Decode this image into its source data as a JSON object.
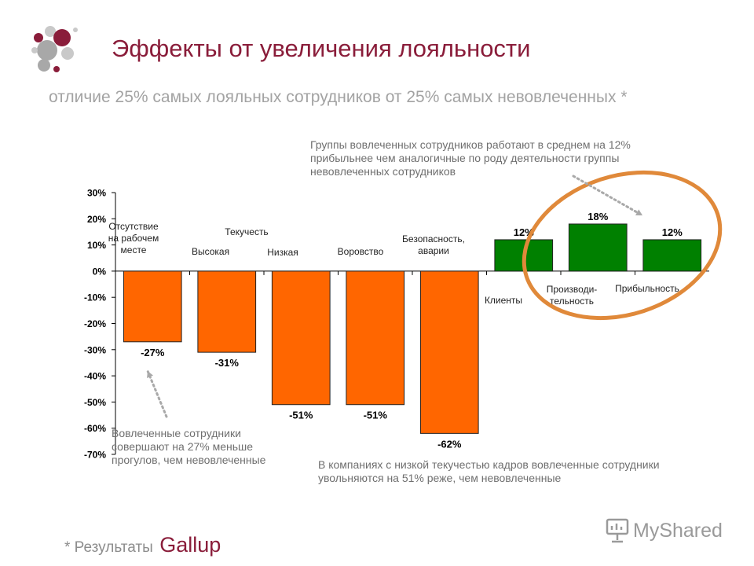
{
  "slide": {
    "title": "Эффекты от увеличения лояльности",
    "subtitle": "отличие 25% самых лояльных сотрудников от 25% самых невовлеченных *",
    "footer_note": "* Результаты",
    "footer_brand": "Gallup",
    "watermark": "MyShared"
  },
  "annotations": {
    "top": "Группы вовлеченных сотрудников работают в среднем на 12% прибыльнее чем аналогичные по роду деятельности группы невовлеченных сотрудников",
    "left": "Вовлеченные сотрудники совершают на 27% меньше прогулов, чем невовлеченные",
    "bottom": "В компаниях с низкой текучестью кадров вовлеченные сотрудники увольняются на 51% реже, чем невовлеченные"
  },
  "chart_data": {
    "type": "bar",
    "categories": [
      "Отсутствие на рабочем месте",
      "Высокая",
      "Низкая",
      "Воровство",
      "Безопасность, аварии",
      "Клиенты",
      "Производи-тельность",
      "Прибыльность"
    ],
    "category_lines": [
      [
        "Отсутствие",
        "на рабочем",
        "месте"
      ],
      [
        "Высокая"
      ],
      [
        "Низкая"
      ],
      [
        "Воровство"
      ],
      [
        "Безопасность,",
        "аварии"
      ],
      [
        "Клиенты"
      ],
      [
        "Производи-",
        "тельность"
      ],
      [
        "Прибыльность"
      ]
    ],
    "group_label": "Текучесть",
    "values": [
      -27,
      -31,
      -51,
      -51,
      -62,
      12,
      18,
      12
    ],
    "value_labels": [
      "-27%",
      "-31%",
      "-51%",
      "-51%",
      "-62%",
      "12%",
      "18%",
      "12%"
    ],
    "colors": [
      "#ff6600",
      "#ff6600",
      "#ff6600",
      "#ff6600",
      "#ff6600",
      "#008000",
      "#008000",
      "#008000"
    ],
    "y_ticks": [
      30,
      20,
      10,
      0,
      -10,
      -20,
      -30,
      -40,
      -50,
      -60,
      -70
    ],
    "y_tick_labels": [
      "30%",
      "20%",
      "10%",
      "0%",
      "-10%",
      "-20%",
      "-30%",
      "-40%",
      "-50%",
      "-60%",
      "-70%"
    ],
    "ylim": [
      -70,
      30
    ],
    "grid": false,
    "highlight_color": "#e0893a"
  }
}
